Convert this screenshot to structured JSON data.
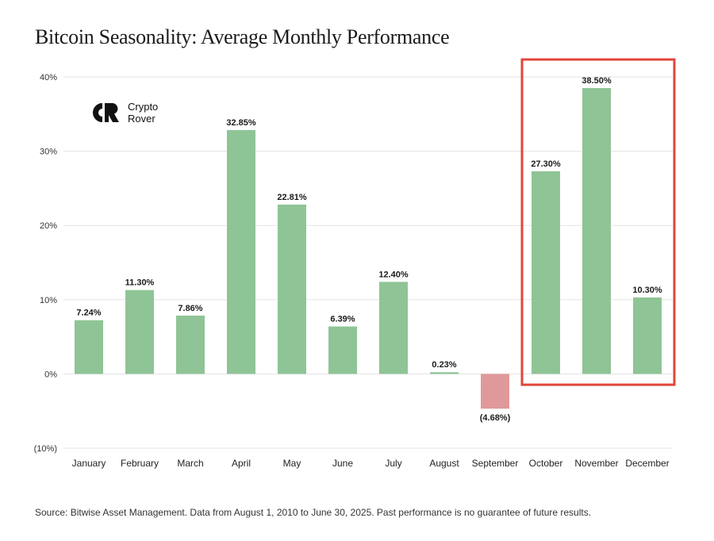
{
  "chart_data": {
    "type": "bar",
    "title": "Bitcoin Seasonality: Average Monthly Performance",
    "categories": [
      "January",
      "February",
      "March",
      "April",
      "May",
      "June",
      "July",
      "August",
      "September",
      "October",
      "November",
      "December"
    ],
    "values": [
      7.24,
      11.3,
      7.86,
      32.85,
      22.81,
      6.39,
      12.4,
      0.23,
      -4.68,
      27.3,
      38.5,
      10.3
    ],
    "value_labels": [
      "7.24%",
      "11.30%",
      "7.86%",
      "32.85%",
      "22.81%",
      "6.39%",
      "12.40%",
      "0.23%",
      "(4.68%)",
      "27.30%",
      "38.50%",
      "10.30%"
    ],
    "yticks": [
      40,
      30,
      20,
      10,
      0,
      -10
    ],
    "ytick_labels": [
      "40%",
      "30%",
      "20%",
      "10%",
      "0%",
      "(10%)"
    ],
    "ylim": [
      -10,
      40
    ],
    "xlabel": "",
    "ylabel": "",
    "grid": true,
    "highlight": {
      "categories": [
        "October",
        "November",
        "December"
      ],
      "color": "#e0463a"
    },
    "colors": {
      "positive": "#8fc496",
      "negative": "#e0999a",
      "grid": "#e3e3e3"
    }
  },
  "logo": {
    "line1": "Crypto",
    "line2": "Rover"
  },
  "source": "Source: Bitwise Asset Management. Data from August 1, 2010 to June 30, 2025. Past performance is no guarantee of future results."
}
